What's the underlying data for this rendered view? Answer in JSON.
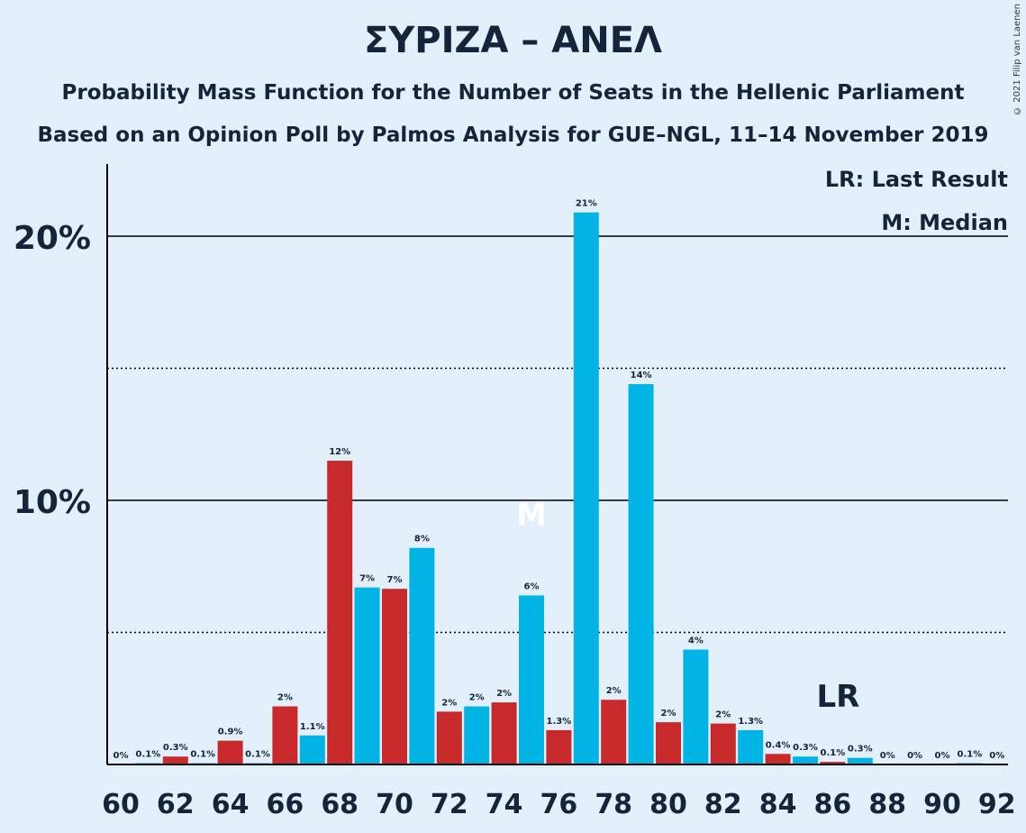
{
  "title": "ΣΥΡΙΖΑ – ΑΝΕΛ",
  "subtitle1": "Probability Mass Function for the Number of Seats in the Hellenic Parliament",
  "subtitle2": "Based on an Opinion Poll by Palmos Analysis for GUE–NGL, 11–14 November 2019",
  "copyright": "© 2021 Filip van Laenen",
  "legend": {
    "lr": "LR: Last Result",
    "m": "M: Median"
  },
  "colors": {
    "red": "#c8292b",
    "blue": "#00b4e6",
    "background": "#e3f0fc",
    "text": "#15233b"
  },
  "chart_data": {
    "type": "bar",
    "xlabel": "",
    "ylabel": "",
    "ylim": [
      0,
      22.8
    ],
    "y_ticks": [
      {
        "value": 10,
        "label": "10%"
      },
      {
        "value": 20,
        "label": "20%"
      }
    ],
    "x_tick_labels": [
      "60",
      "62",
      "64",
      "66",
      "68",
      "70",
      "72",
      "74",
      "76",
      "78",
      "80",
      "82",
      "84",
      "86",
      "88",
      "90",
      "92"
    ],
    "x": [
      60,
      61,
      62,
      63,
      64,
      65,
      66,
      67,
      68,
      69,
      70,
      71,
      72,
      73,
      74,
      75,
      76,
      77,
      78,
      79,
      80,
      81,
      82,
      83,
      84,
      85,
      86,
      87,
      88,
      89,
      90,
      91,
      92
    ],
    "values": [
      0,
      0.05,
      0.3,
      0.05,
      0.9,
      0.05,
      2.2,
      1.1,
      11.5,
      6.7,
      6.65,
      8.2,
      2.0,
      2.2,
      2.35,
      6.4,
      1.3,
      20.9,
      2.45,
      14.4,
      1.6,
      4.35,
      1.55,
      1.3,
      0.4,
      0.3,
      0.1,
      0.25,
      0,
      0,
      0,
      0.05,
      0
    ],
    "labels": [
      "0%",
      "0.1%",
      "0.3%",
      "0.1%",
      "0.9%",
      "0.1%",
      "2%",
      "1.1%",
      "12%",
      "7%",
      "7%",
      "8%",
      "2%",
      "2%",
      "2%",
      "6%",
      "1.3%",
      "21%",
      "2%",
      "14%",
      "2%",
      "4%",
      "2%",
      "1.3%",
      "0.4%",
      "0.3%",
      "0.1%",
      "0.3%",
      "0%",
      "0%",
      "0%",
      "0.1%",
      "0%"
    ],
    "bar_colors": [
      "red",
      "blue",
      "red",
      "blue",
      "red",
      "blue",
      "red",
      "blue",
      "red",
      "blue",
      "red",
      "blue",
      "red",
      "blue",
      "red",
      "blue",
      "red",
      "blue",
      "red",
      "blue",
      "red",
      "blue",
      "red",
      "blue",
      "red",
      "blue",
      "red",
      "blue",
      "red",
      "blue",
      "red",
      "blue",
      "red"
    ],
    "median": {
      "x": 75,
      "label": "M"
    },
    "last_result": {
      "x": 86,
      "label": "LR"
    },
    "grid": {
      "solid": [
        10,
        20
      ],
      "dotted": [
        5,
        15
      ]
    }
  }
}
